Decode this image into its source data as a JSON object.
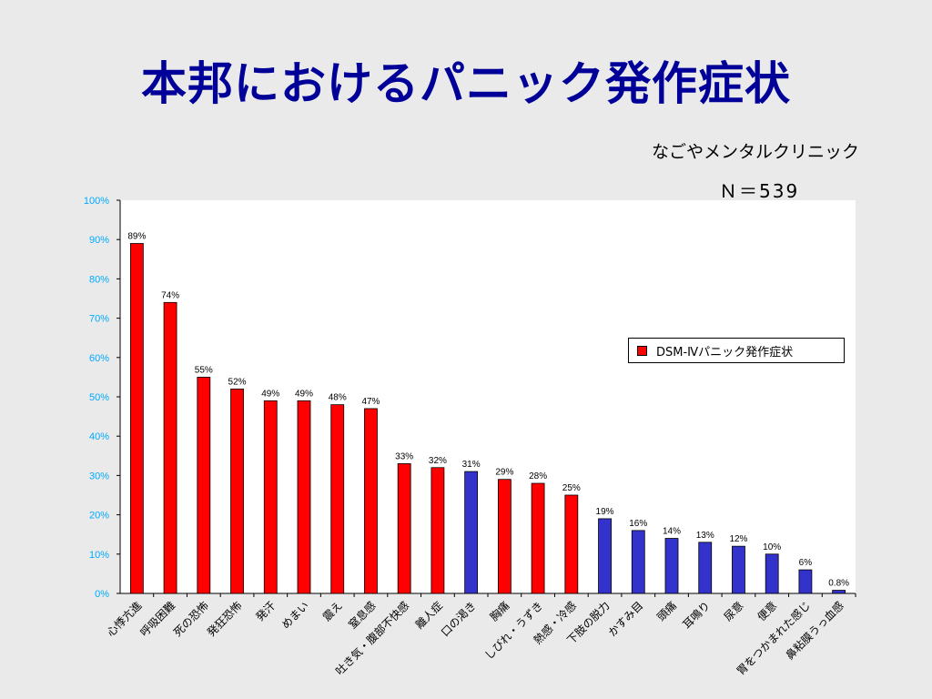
{
  "title": "本邦におけるパニック発作症状",
  "source": "なごやメンタルクリニック",
  "n_label": "Ｎ＝539",
  "colors": {
    "red": "#ff0000",
    "blue": "#3333cc",
    "title": "#000099",
    "axis_ticks": "#00aaff"
  },
  "chart_data": {
    "type": "bar",
    "categories": [
      "心悸亢進",
      "呼吸困難",
      "死の恐怖",
      "発狂恐怖",
      "発汗",
      "めまい",
      "震え",
      "窒息感",
      "吐き気・腹部不快感",
      "離人症",
      "口の渇き",
      "胸痛",
      "しびれ・うずき",
      "熱感・冷感",
      "下肢の脱力",
      "かすみ目",
      "頭痛",
      "耳鳴り",
      "尿意",
      "便意",
      "胃をつかまれた感じ",
      "鼻粘膜うっ血感"
    ],
    "values": [
      89,
      74,
      55,
      52,
      49,
      49,
      48,
      47,
      33,
      32,
      31,
      29,
      28,
      25,
      19,
      16,
      14,
      13,
      12,
      10,
      6,
      0.8
    ],
    "value_labels": [
      "89%",
      "74%",
      "55%",
      "52%",
      "49%",
      "49%",
      "48%",
      "47%",
      "33%",
      "32%",
      "31%",
      "29%",
      "28%",
      "25%",
      "19%",
      "16%",
      "14%",
      "13%",
      "12%",
      "10%",
      "6%",
      "0.8%"
    ],
    "dsm_iv": [
      true,
      true,
      true,
      true,
      true,
      true,
      true,
      true,
      true,
      true,
      false,
      true,
      true,
      true,
      false,
      false,
      false,
      false,
      false,
      false,
      false,
      false
    ],
    "ylim": [
      0,
      100
    ],
    "yticks": [
      "0%",
      "10%",
      "20%",
      "30%",
      "40%",
      "50%",
      "60%",
      "70%",
      "80%",
      "90%",
      "100%"
    ],
    "legend": {
      "label": "DSM-Ⅳパニック発作症状",
      "position": "right"
    },
    "grid": false
  }
}
